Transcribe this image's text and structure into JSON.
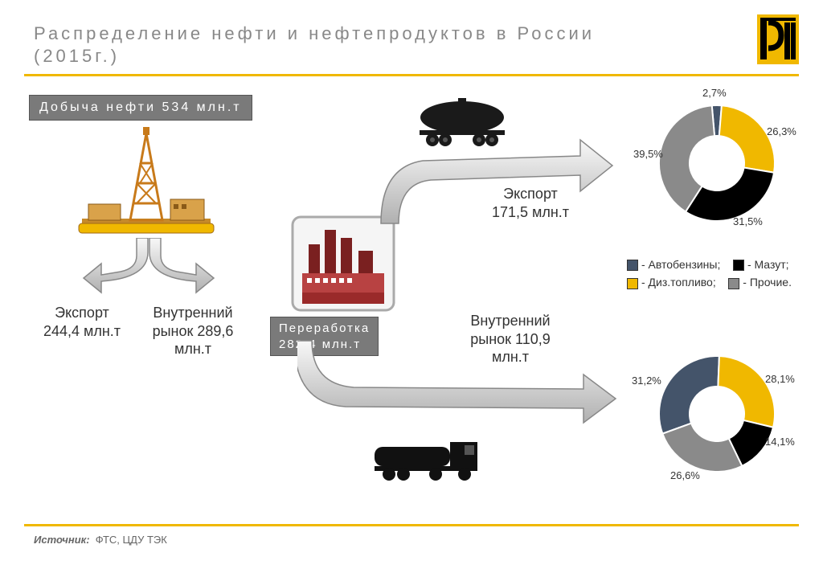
{
  "title_line1": "Распределение нефти и нефтепродуктов в России",
  "title_line2": "(2015г.)",
  "production_bar": "Добыча нефти 534 млн.т",
  "processing_bar": "Переработка 282,4 млн.т",
  "export_left_1": "Экспорт",
  "export_left_2": "244,4 млн.т",
  "domestic_left_1": "Внутренний",
  "domestic_left_2": "рынок 289,6",
  "domestic_left_3": "млн.т",
  "export_right_1": "Экспорт",
  "export_right_2": "171,5 млн.т",
  "domestic_right_1": "Внутренний",
  "domestic_right_2": "рынок 110,9",
  "domestic_right_3": "млн.т",
  "source_label": "Источник:",
  "source_value": "ФТС, ЦДУ ТЭК",
  "legend": {
    "items": [
      {
        "color": "#44546a",
        "label": "- Автобензины;"
      },
      {
        "color": "#000000",
        "label": "- Мазут;"
      },
      {
        "color": "#f0b800",
        "label": "- Диз.топливо;"
      },
      {
        "color": "#8a8a8a",
        "label": "- Прочие."
      }
    ]
  },
  "donut_export": {
    "labels": [
      "2,7%",
      "26,3%",
      "31,5%",
      "39,5%"
    ],
    "slices": [
      {
        "color": "#44546a",
        "pct": 2.7
      },
      {
        "color": "#f0b800",
        "pct": 26.3
      },
      {
        "color": "#000000",
        "pct": 31.5
      },
      {
        "color": "#8a8a8a",
        "pct": 39.5
      }
    ],
    "inner_radius": 34,
    "outer_radius": 72
  },
  "donut_domestic": {
    "labels": [
      "31,2%",
      "28,1%",
      "14,1%",
      "26,6%"
    ],
    "slices": [
      {
        "color": "#44546a",
        "pct": 31.2
      },
      {
        "color": "#f0b800",
        "pct": 28.1
      },
      {
        "color": "#000000",
        "pct": 14.1
      },
      {
        "color": "#8a8a8a",
        "pct": 26.6
      }
    ],
    "inner_radius": 34,
    "outer_radius": 72
  },
  "colors": {
    "accent": "#f0b800",
    "bar_bg": "#7a7a7a",
    "arrow_light": "#f5f5f5",
    "arrow_dark": "#b5b5b5"
  }
}
